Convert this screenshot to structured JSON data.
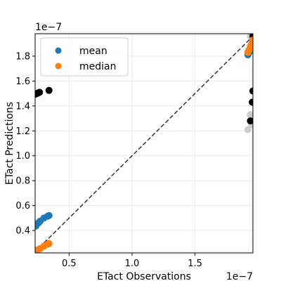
{
  "chart_data": {
    "type": "scatter",
    "xlabel": "ETact Observations",
    "ylabel": "ETact Predictions",
    "x_offset_text": "1e−7",
    "y_offset_text": "1e−7",
    "xlim": [
      0.23,
      1.96
    ],
    "ylim": [
      0.22,
      1.98
    ],
    "x_ticks": [
      0.5,
      1.0,
      1.5
    ],
    "x_tick_labels": [
      "0.5",
      "1.0",
      "1.5"
    ],
    "y_ticks": [
      0.4,
      0.6,
      0.8,
      1.0,
      1.2,
      1.4,
      1.6,
      1.8
    ],
    "y_tick_labels": [
      "0.4",
      "0.6",
      "0.8",
      "1.0",
      "1.2",
      "1.4",
      "1.6",
      "1.8"
    ],
    "grid": true,
    "legend_position": "upper-left",
    "reference_line": {
      "style": "dashed",
      "color": "#333333",
      "from": [
        0.23,
        0.23
      ],
      "to": [
        1.96,
        1.96
      ]
    },
    "series": [
      {
        "name": "mean",
        "color": "#1f77b4",
        "points": [
          [
            0.235,
            0.435
          ],
          [
            0.24,
            0.445
          ],
          [
            0.25,
            0.455
          ],
          [
            0.26,
            0.465
          ],
          [
            0.27,
            0.475
          ],
          [
            0.3,
            0.5
          ],
          [
            0.33,
            0.515
          ],
          [
            0.34,
            0.52
          ],
          [
            1.92,
            1.81
          ],
          [
            1.93,
            1.83
          ],
          [
            1.94,
            1.86
          ],
          [
            1.95,
            1.88
          ],
          [
            1.96,
            1.9
          ]
        ]
      },
      {
        "name": "median",
        "color": "#ff7f0e",
        "points": [
          [
            0.235,
            0.235
          ],
          [
            0.25,
            0.245
          ],
          [
            0.27,
            0.255
          ],
          [
            0.3,
            0.275
          ],
          [
            0.33,
            0.29
          ],
          [
            0.34,
            0.295
          ],
          [
            1.92,
            1.83
          ],
          [
            1.93,
            1.85
          ],
          [
            1.94,
            1.88
          ],
          [
            1.95,
            1.9
          ],
          [
            1.96,
            1.93
          ]
        ]
      },
      {
        "color": "#000000",
        "points": [
          [
            0.235,
            1.495
          ],
          [
            0.245,
            1.5
          ],
          [
            0.255,
            1.505
          ],
          [
            0.265,
            1.51
          ],
          [
            0.34,
            1.525
          ],
          [
            1.94,
            1.28
          ],
          [
            1.955,
            1.43
          ],
          [
            1.96,
            1.52
          ],
          [
            1.96,
            1.96
          ]
        ]
      },
      {
        "color": "#cccccc",
        "points": [
          [
            1.92,
            1.21
          ],
          [
            1.94,
            1.33
          ],
          [
            1.95,
            1.25
          ],
          [
            1.94,
            1.96
          ]
        ]
      }
    ]
  }
}
